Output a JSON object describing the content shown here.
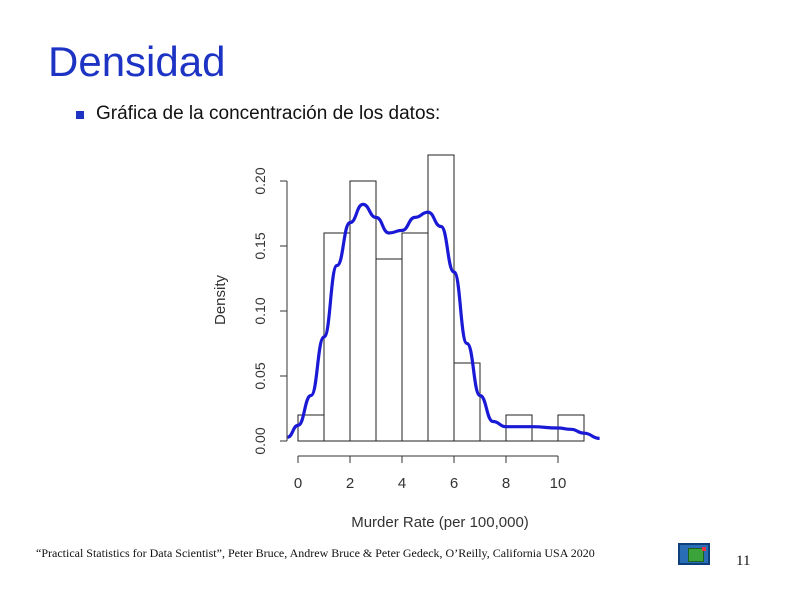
{
  "slide": {
    "title": "Densidad",
    "bullet": "Gráfica de la concentración de los datos:",
    "citation": "“Practical Statistics for Data Scientist”, Peter Bruce, Andrew Bruce & Peter Gedeck, O’Reilly, California USA 2020",
    "page_number": "11",
    "title_color": "#1d33c4"
  },
  "chart_data": {
    "type": "bar",
    "subtype": "histogram-with-density",
    "xlabel": "Murder Rate (per 100,000)",
    "ylabel": "Density",
    "bins": [
      {
        "x0": 0,
        "x1": 1,
        "density": 0.02
      },
      {
        "x0": 1,
        "x1": 2,
        "density": 0.16
      },
      {
        "x0": 2,
        "x1": 3,
        "density": 0.2
      },
      {
        "x0": 3,
        "x1": 4,
        "density": 0.14
      },
      {
        "x0": 4,
        "x1": 5,
        "density": 0.16
      },
      {
        "x0": 5,
        "x1": 6,
        "density": 0.22
      },
      {
        "x0": 6,
        "x1": 7,
        "density": 0.06
      },
      {
        "x0": 7,
        "x1": 8,
        "density": 0.0
      },
      {
        "x0": 8,
        "x1": 9,
        "density": 0.02
      },
      {
        "x0": 9,
        "x1": 10,
        "density": 0.0
      },
      {
        "x0": 10,
        "x1": 11,
        "density": 0.02
      }
    ],
    "density_curve": {
      "color": "#1a1ad6",
      "points": [
        [
          -0.4,
          0.003
        ],
        [
          0,
          0.012
        ],
        [
          0.5,
          0.035
        ],
        [
          1,
          0.08
        ],
        [
          1.5,
          0.135
        ],
        [
          2,
          0.168
        ],
        [
          2.5,
          0.182
        ],
        [
          3,
          0.172
        ],
        [
          3.5,
          0.16
        ],
        [
          4,
          0.162
        ],
        [
          4.5,
          0.172
        ],
        [
          5,
          0.176
        ],
        [
          5.5,
          0.165
        ],
        [
          6,
          0.13
        ],
        [
          6.5,
          0.075
        ],
        [
          7,
          0.035
        ],
        [
          7.5,
          0.015
        ],
        [
          8,
          0.011
        ],
        [
          9,
          0.011
        ],
        [
          10,
          0.01
        ],
        [
          10.5,
          0.009
        ],
        [
          11,
          0.006
        ],
        [
          11.6,
          0.002
        ]
      ]
    },
    "x_ticks": [
      0,
      2,
      4,
      6,
      8,
      10
    ],
    "y_ticks": [
      "0.00",
      "0.05",
      "0.10",
      "0.15",
      "0.20"
    ],
    "y_tick_values": [
      0,
      0.05,
      0.1,
      0.15,
      0.2
    ],
    "xlim": [
      -0.4,
      11.6
    ],
    "ylim": [
      0,
      0.22
    ],
    "grid": false,
    "legend": "none"
  }
}
